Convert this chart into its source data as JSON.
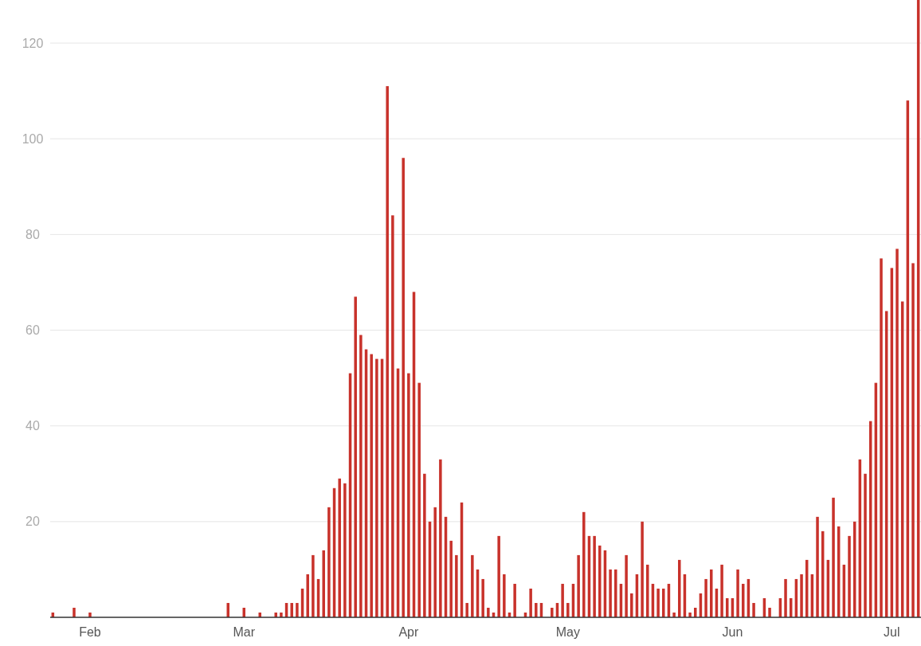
{
  "chart_data": {
    "type": "bar",
    "color": "#c8322b",
    "grid": "y",
    "ylim": [
      0,
      129
    ],
    "yticks": [
      20,
      40,
      60,
      80,
      100,
      120
    ],
    "xlim": [
      "--01-24T12:00",
      "--07-06T12:00"
    ],
    "xticks": [
      {
        "value": "--02-01",
        "label": "Feb"
      },
      {
        "value": "--03-01",
        "label": "Mar"
      },
      {
        "value": "--04-01",
        "label": "Apr"
      },
      {
        "value": "--05-01",
        "label": "May"
      },
      {
        "value": "--06-01",
        "label": "Jun"
      },
      {
        "value": "--07-01",
        "label": "Jul"
      }
    ],
    "x": [
      "--01-25",
      "--01-29",
      "--02-01",
      "--02-27",
      "--03-01",
      "--03-04",
      "--03-07",
      "--03-08",
      "--03-09",
      "--03-10",
      "--03-11",
      "--03-12",
      "--03-13",
      "--03-14",
      "--03-15",
      "--03-16",
      "--03-17",
      "--03-18",
      "--03-19",
      "--03-20",
      "--03-21",
      "--03-22",
      "--03-23",
      "--03-24",
      "--03-25",
      "--03-26",
      "--03-27",
      "--03-28",
      "--03-29",
      "--03-30",
      "--03-31",
      "--04-01",
      "--04-02",
      "--04-03",
      "--04-04",
      "--04-05",
      "--04-06",
      "--04-07",
      "--04-08",
      "--04-09",
      "--04-10",
      "--04-11",
      "--04-12",
      "--04-13",
      "--04-14",
      "--04-15",
      "--04-16",
      "--04-17",
      "--04-18",
      "--04-19",
      "--04-20",
      "--04-21",
      "--04-23",
      "--04-24",
      "--04-25",
      "--04-26",
      "--04-28",
      "--04-29",
      "--04-30",
      "--05-01",
      "--05-02",
      "--05-03",
      "--05-04",
      "--05-05",
      "--05-06",
      "--05-07",
      "--05-08",
      "--05-09",
      "--05-10",
      "--05-11",
      "--05-12",
      "--05-13",
      "--05-14",
      "--05-15",
      "--05-16",
      "--05-17",
      "--05-18",
      "--05-19",
      "--05-20",
      "--05-21",
      "--05-22",
      "--05-23",
      "--05-24",
      "--05-25",
      "--05-26",
      "--05-27",
      "--05-28",
      "--05-29",
      "--05-30",
      "--05-31",
      "--06-01",
      "--06-02",
      "--06-03",
      "--06-04",
      "--06-05",
      "--06-07",
      "--06-08",
      "--06-10",
      "--06-11",
      "--06-12",
      "--06-13",
      "--06-14",
      "--06-15",
      "--06-16",
      "--06-17",
      "--06-18",
      "--06-19",
      "--06-20",
      "--06-21",
      "--06-22",
      "--06-23",
      "--06-24",
      "--06-25",
      "--06-26",
      "--06-27",
      "--06-28",
      "--06-29",
      "--06-30",
      "--07-01",
      "--07-02",
      "--07-03",
      "--07-04",
      "--07-05",
      "--07-06"
    ],
    "values": [
      1,
      2,
      1,
      3,
      2,
      1,
      1,
      1,
      3,
      3,
      3,
      6,
      9,
      13,
      8,
      14,
      23,
      27,
      29,
      28,
      51,
      67,
      59,
      56,
      55,
      54,
      54,
      111,
      84,
      52,
      96,
      51,
      68,
      49,
      30,
      20,
      23,
      33,
      21,
      16,
      13,
      24,
      3,
      13,
      10,
      8,
      2,
      1,
      17,
      9,
      1,
      7,
      1,
      6,
      3,
      3,
      2,
      3,
      7,
      3,
      7,
      13,
      22,
      17,
      17,
      15,
      14,
      10,
      10,
      7,
      13,
      5,
      9,
      20,
      11,
      7,
      6,
      6,
      7,
      1,
      12,
      9,
      1,
      2,
      5,
      8,
      10,
      6,
      11,
      4,
      4,
      10,
      7,
      8,
      3,
      4,
      2,
      4,
      8,
      4,
      8,
      9,
      12,
      9,
      21,
      18,
      12,
      25,
      19,
      11,
      17,
      20,
      33,
      30,
      41,
      49,
      75,
      64,
      73,
      77,
      66,
      108,
      74,
      129
    ]
  }
}
